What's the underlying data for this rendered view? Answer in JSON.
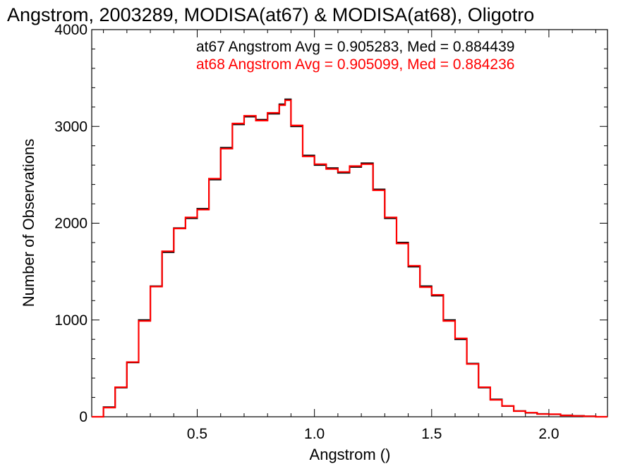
{
  "chart_data": {
    "type": "line",
    "title": "Angstrom, 2003289, MODISA(at67) & MODISA(at68), Oligotro",
    "xlabel": "Angstrom ()",
    "ylabel": "Number of Observations",
    "xlim": [
      0.05,
      2.25
    ],
    "ylim": [
      0,
      4000
    ],
    "xticks": [
      0.5,
      1.0,
      1.5,
      2.0
    ],
    "xtick_labels": [
      "0.5",
      "1.0",
      "1.5",
      "2.0"
    ],
    "yticks": [
      0,
      1000,
      2000,
      3000,
      4000
    ],
    "ytick_labels": [
      "0",
      "1000",
      "2000",
      "3000",
      "4000"
    ],
    "grid": false,
    "step": true,
    "annotations": [
      {
        "text": "at67 Angstrom Avg = 0.905283, Med = 0.884439",
        "color": "#000000"
      },
      {
        "text": "at68 Angstrom Avg = 0.905099, Med = 0.884236",
        "color": "#ff0000"
      }
    ],
    "x": [
      0.05,
      0.1,
      0.15,
      0.2,
      0.25,
      0.3,
      0.35,
      0.4,
      0.45,
      0.5,
      0.55,
      0.6,
      0.65,
      0.7,
      0.75,
      0.8,
      0.85,
      0.875,
      0.9,
      0.95,
      1.0,
      1.05,
      1.1,
      1.15,
      1.2,
      1.25,
      1.3,
      1.35,
      1.4,
      1.45,
      1.5,
      1.55,
      1.6,
      1.65,
      1.7,
      1.75,
      1.8,
      1.85,
      1.9,
      1.95,
      2.0,
      2.05,
      2.1,
      2.15,
      2.2,
      2.25
    ],
    "series": [
      {
        "name": "at67",
        "color": "#000000",
        "values": [
          0,
          100,
          300,
          560,
          1000,
          1350,
          1700,
          1950,
          2050,
          2150,
          2450,
          2780,
          3020,
          3100,
          3070,
          3130,
          3230,
          3280,
          3000,
          2700,
          2600,
          2570,
          2520,
          2580,
          2620,
          2350,
          2050,
          1800,
          1550,
          1350,
          1250,
          1000,
          800,
          550,
          300,
          180,
          110,
          60,
          40,
          30,
          25,
          15,
          10,
          5,
          0,
          0
        ]
      },
      {
        "name": "at68",
        "color": "#ff0000",
        "values": [
          0,
          95,
          305,
          565,
          990,
          1345,
          1710,
          1945,
          2060,
          2140,
          2460,
          2770,
          3030,
          3110,
          3060,
          3140,
          3220,
          3270,
          3010,
          2690,
          2610,
          2560,
          2530,
          2590,
          2610,
          2340,
          2060,
          1790,
          1560,
          1340,
          1260,
          990,
          810,
          545,
          305,
          175,
          112,
          58,
          42,
          28,
          26,
          14,
          9,
          5,
          0,
          0
        ]
      }
    ]
  }
}
